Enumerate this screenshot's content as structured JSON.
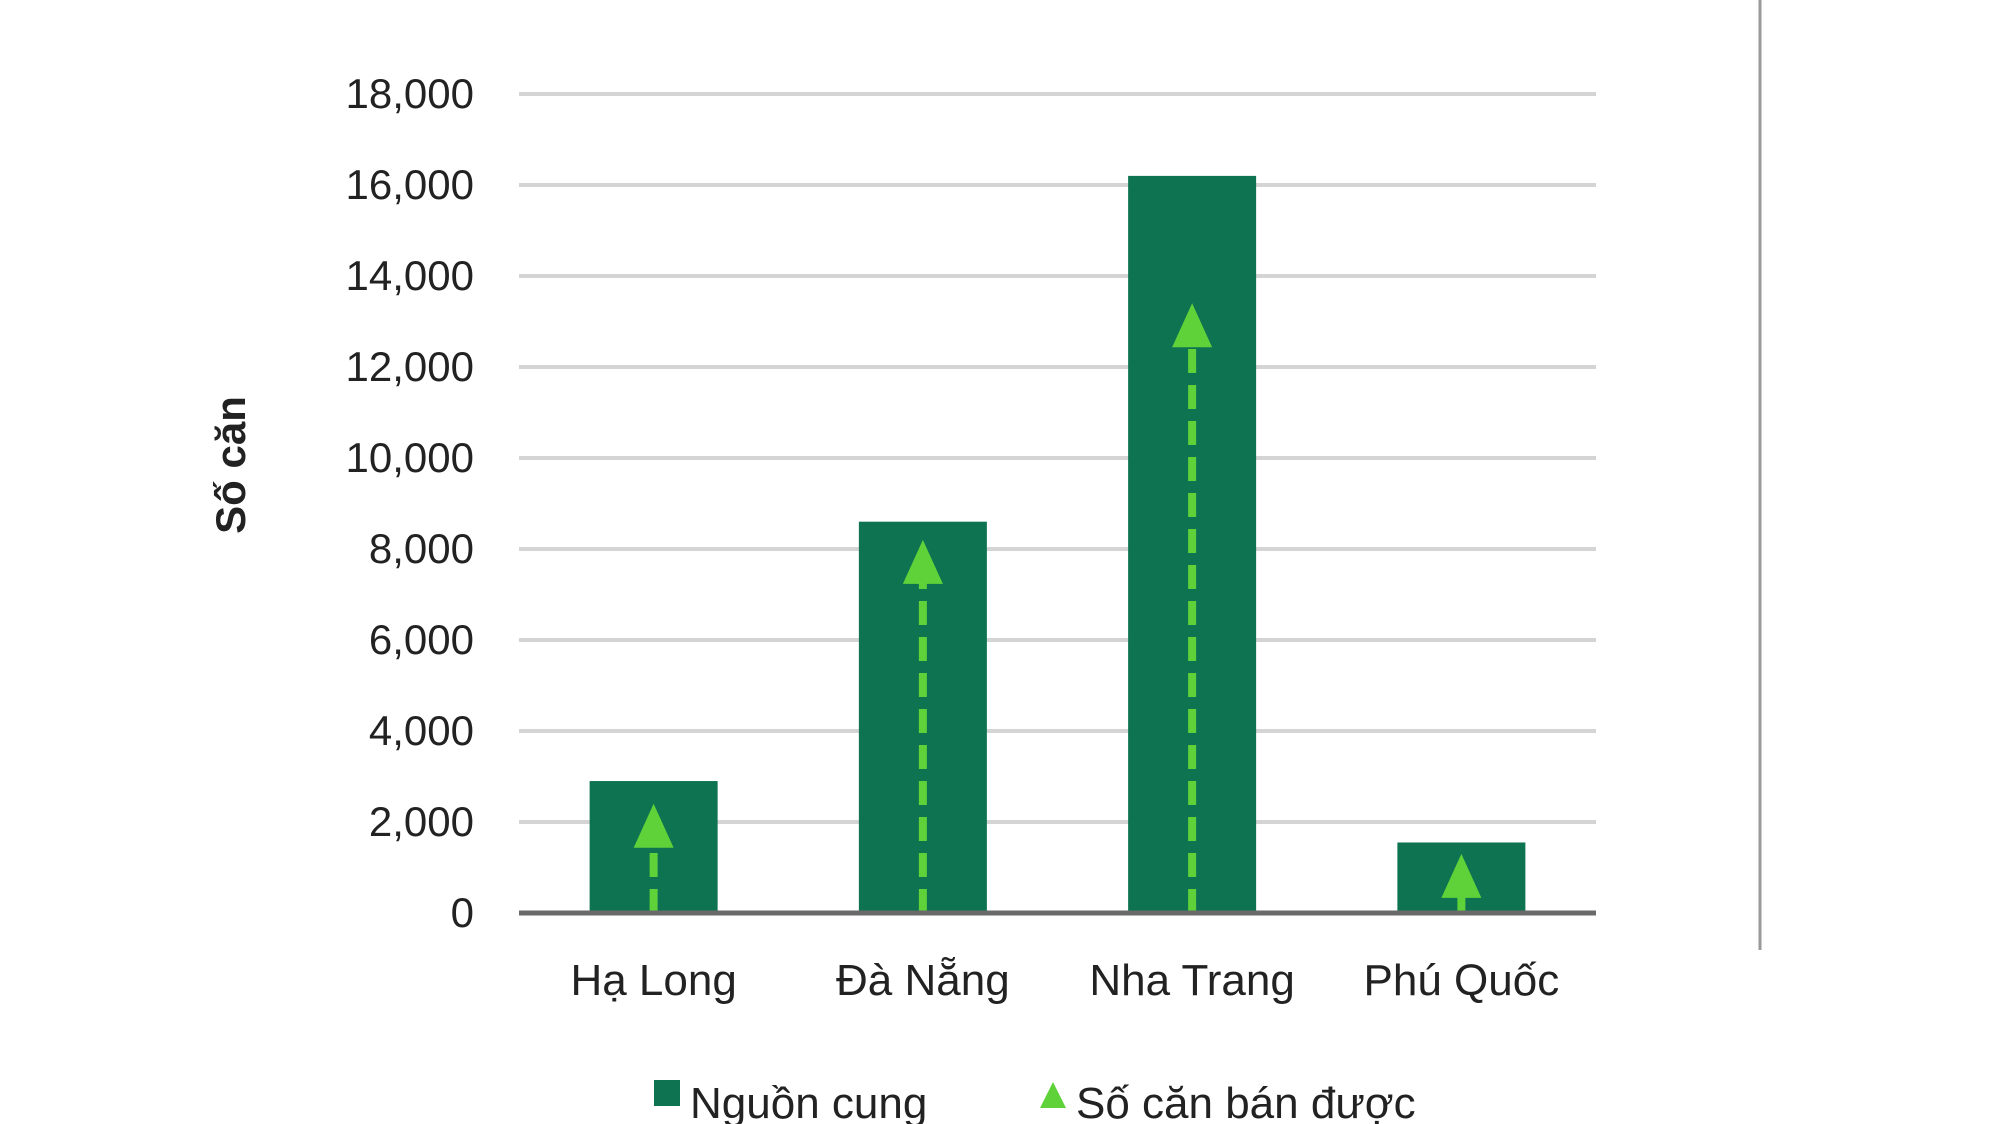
{
  "chart_data": {
    "type": "bar",
    "title": "",
    "xlabel": "",
    "ylabel": "Số căn",
    "ylim": [
      0,
      18000
    ],
    "yticks": [
      0,
      2000,
      4000,
      6000,
      8000,
      10000,
      12000,
      14000,
      16000,
      18000
    ],
    "ytick_labels": [
      "0",
      "2,000",
      "4,000",
      "6,000",
      "8,000",
      "10,000",
      "12,000",
      "14,000",
      "16,000",
      "18,000"
    ],
    "grid": true,
    "legend_position": "bottom",
    "categories": [
      "Hạ Long",
      "Đà Nẵng",
      "Nha Trang",
      "Phú Quốc"
    ],
    "series": [
      {
        "name": "Nguồn cung",
        "type": "bar",
        "color": "#0e7350",
        "values": [
          2900,
          8600,
          16200,
          1550
        ]
      },
      {
        "name": "Số căn bán được",
        "type": "arrow",
        "color": "#5fd23a",
        "values": [
          2400,
          8200,
          13400,
          1300
        ]
      }
    ]
  }
}
